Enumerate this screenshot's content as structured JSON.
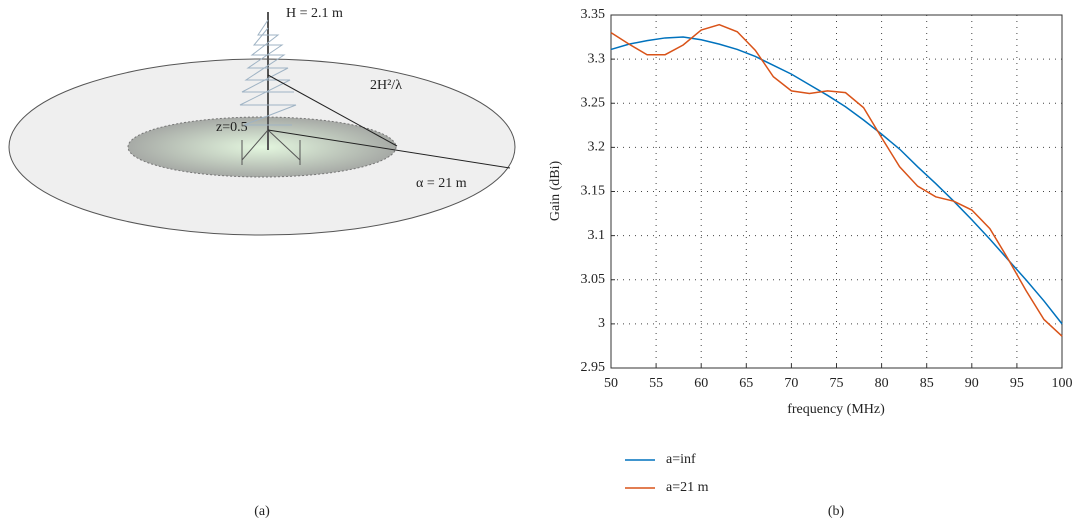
{
  "diagram": {
    "labels": [
      "H = 2.1 m",
      "2H²/λ",
      "z=0.5",
      "α = 21 m"
    ],
    "caption": "(a)"
  },
  "chart_data": {
    "type": "line",
    "caption": "(b)",
    "xlabel": "frequency (MHz)",
    "ylabel": "Gain (dBi)",
    "x": [
      50,
      52,
      54,
      56,
      58,
      60,
      62,
      64,
      66,
      68,
      70,
      72,
      74,
      76,
      78,
      80,
      82,
      84,
      86,
      88,
      90,
      92,
      94,
      96,
      98,
      100
    ],
    "series": [
      {
        "name": "a=inf",
        "color": "#0072bd",
        "values": [
          3.311,
          3.317,
          3.321,
          3.324,
          3.325,
          3.322,
          3.317,
          3.311,
          3.303,
          3.293,
          3.283,
          3.271,
          3.259,
          3.246,
          3.231,
          3.215,
          3.198,
          3.178,
          3.159,
          3.139,
          3.118,
          3.096,
          3.073,
          3.05,
          3.026,
          3.0
        ]
      },
      {
        "name": "a=21 m",
        "color": "#d95319",
        "values": [
          3.33,
          3.317,
          3.305,
          3.305,
          3.316,
          3.333,
          3.339,
          3.331,
          3.31,
          3.28,
          3.264,
          3.261,
          3.264,
          3.262,
          3.245,
          3.211,
          3.178,
          3.156,
          3.144,
          3.139,
          3.129,
          3.108,
          3.074,
          3.038,
          3.005,
          2.986
        ]
      }
    ],
    "xlim": [
      50,
      100
    ],
    "ylim": [
      2.95,
      3.35
    ],
    "xticks": [
      50,
      55,
      60,
      65,
      70,
      75,
      80,
      85,
      90,
      95,
      100
    ],
    "yticks": [
      2.95,
      3,
      3.05,
      3.1,
      3.15,
      3.2,
      3.25,
      3.3,
      3.35
    ],
    "grid": true,
    "legend": "below-left"
  }
}
